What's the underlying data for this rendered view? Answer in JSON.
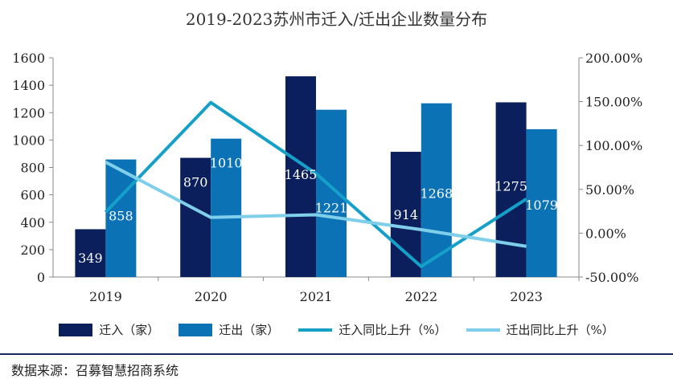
{
  "chart_data": {
    "type": "bar",
    "title": "2019-2023苏州市迁入/迁出企业数量分布",
    "categories": [
      "2019",
      "2020",
      "2021",
      "2022",
      "2023"
    ],
    "series": [
      {
        "name": "迁入（家）",
        "kind": "bar",
        "axis": "left",
        "color": "#0a1f5c",
        "values": [
          349,
          870,
          1465,
          914,
          1275
        ],
        "labels": [
          "349",
          "870",
          "1465",
          "914",
          "1275"
        ]
      },
      {
        "name": "迁出（家）",
        "kind": "bar",
        "axis": "left",
        "color": "#0b72b5",
        "values": [
          858,
          1010,
          1221,
          1268,
          1079
        ],
        "labels": [
          "858",
          "1010",
          "1221",
          "1268",
          "1079"
        ]
      },
      {
        "name": "迁入同比上升（%）",
        "kind": "line",
        "axis": "right",
        "color": "#15a0c9",
        "values": [
          24,
          149,
          68,
          -38,
          39
        ]
      },
      {
        "name": "迁出同比上升（%）",
        "kind": "line",
        "axis": "right",
        "color": "#7fcfea",
        "values": [
          81,
          18,
          21,
          4,
          -15
        ]
      }
    ],
    "left_axis": {
      "min": 0,
      "max": 1600,
      "ticks": [
        "0",
        "200",
        "400",
        "600",
        "800",
        "1000",
        "1200",
        "1400",
        "1600"
      ]
    },
    "right_axis": {
      "min": -50,
      "max": 200,
      "ticks": [
        "-50.00%",
        "0.00%",
        "50.00%",
        "100.00%",
        "150.00%",
        "200.00%"
      ]
    },
    "legend_position": "bottom"
  },
  "source": "数据来源：召募智慧招商系统"
}
